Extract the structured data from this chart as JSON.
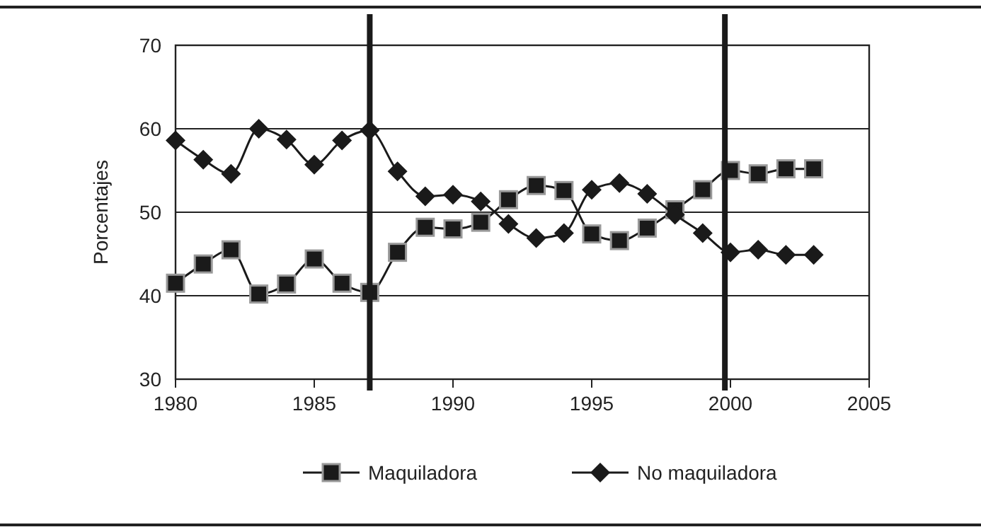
{
  "chart_data": {
    "type": "line",
    "ylabel": "Porcentajes",
    "x": [
      1980,
      1981,
      1982,
      1983,
      1984,
      1985,
      1986,
      1987,
      1988,
      1989,
      1990,
      1991,
      1992,
      1993,
      1994,
      1995,
      1996,
      1997,
      1998,
      1999,
      2000,
      2001,
      2002,
      2003
    ],
    "series": [
      {
        "name": "Maquiladora",
        "color": "#1a1a1a",
        "marker": "square",
        "values": [
          41.5,
          43.8,
          45.5,
          40.2,
          41.4,
          44.4,
          41.5,
          40.4,
          45.2,
          48.2,
          48,
          48.8,
          51.5,
          53.2,
          52.6,
          47.4,
          46.6,
          48.1,
          50.3,
          52.7,
          55,
          54.6,
          55.2,
          55.2
        ]
      },
      {
        "name": "No maquiladora",
        "color": "#1a1a1a",
        "marker": "diamond",
        "values": [
          58.6,
          56.3,
          54.6,
          60,
          58.7,
          55.7,
          58.6,
          59.8,
          54.9,
          51.9,
          52.1,
          51.3,
          48.6,
          46.9,
          47.5,
          52.7,
          53.5,
          52.2,
          49.7,
          47.5,
          45.2,
          45.5,
          44.9,
          44.9
        ]
      }
    ],
    "xlim": [
      1980,
      2005
    ],
    "xticks": [
      1980,
      1985,
      1990,
      1995,
      2000,
      2005
    ],
    "ylim": [
      30,
      70
    ],
    "yticks": [
      30,
      40,
      50,
      60,
      70
    ],
    "grid": "y",
    "legend": "bottom",
    "ref_lines": [
      {
        "axis": "x",
        "value": 1987,
        "color": "#1a1a1a"
      },
      {
        "axis": "x",
        "value": 1999.8,
        "color": "#1a1a1a"
      }
    ]
  }
}
